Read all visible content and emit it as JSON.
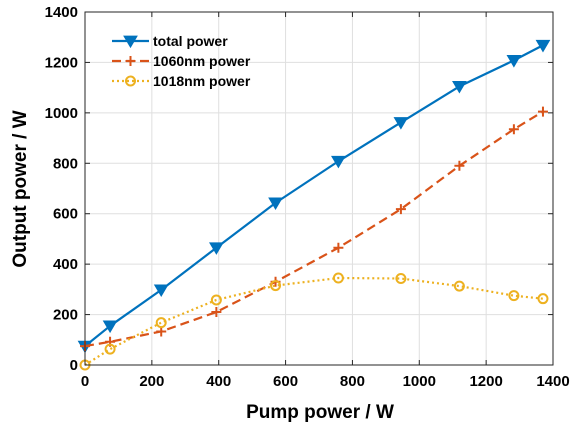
{
  "chart_data": {
    "type": "line",
    "xlabel": "Pump power / W",
    "ylabel": "Output power / W",
    "xlim": [
      0,
      1400
    ],
    "ylim": [
      0,
      1400
    ],
    "xticks": [
      "0",
      "200",
      "400",
      "600",
      "800",
      "1000",
      "1200",
      "1400"
    ],
    "yticks": [
      "0",
      "200",
      "400",
      "600",
      "800",
      "1000",
      "1200",
      "1400"
    ],
    "grid": true,
    "legend_position": "top-left",
    "series": [
      {
        "name": "total power",
        "color": "#0072BD",
        "line_style": "solid",
        "marker": "triangle-down",
        "x": [
          0,
          75,
          228,
          393,
          570,
          758,
          945,
          1120,
          1283,
          1370
        ],
        "y": [
          75,
          155,
          298,
          465,
          643,
          808,
          962,
          1105,
          1208,
          1268
        ]
      },
      {
        "name": "1060nm power",
        "color": "#D95319",
        "line_style": "dashed",
        "marker": "plus",
        "x": [
          0,
          75,
          228,
          393,
          570,
          758,
          945,
          1120,
          1283,
          1370
        ],
        "y": [
          75,
          92,
          133,
          210,
          330,
          465,
          618,
          790,
          935,
          1005
        ]
      },
      {
        "name": "1018nm power",
        "color": "#EDB120",
        "line_style": "dotted",
        "marker": "circle",
        "x": [
          0,
          75,
          228,
          393,
          570,
          758,
          945,
          1120,
          1283,
          1370
        ],
        "y": [
          0,
          63,
          168,
          258,
          315,
          345,
          343,
          313,
          275,
          263
        ]
      }
    ]
  }
}
